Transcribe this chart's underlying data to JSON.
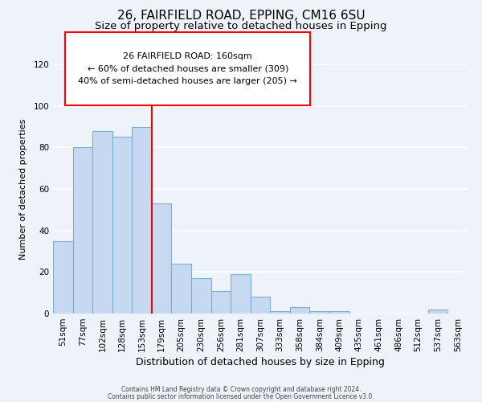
{
  "title1": "26, FAIRFIELD ROAD, EPPING, CM16 6SU",
  "title2": "Size of property relative to detached houses in Epping",
  "xlabel": "Distribution of detached houses by size in Epping",
  "ylabel": "Number of detached properties",
  "bar_labels": [
    "51sqm",
    "77sqm",
    "102sqm",
    "128sqm",
    "153sqm",
    "179sqm",
    "205sqm",
    "230sqm",
    "256sqm",
    "281sqm",
    "307sqm",
    "333sqm",
    "358sqm",
    "384sqm",
    "409sqm",
    "435sqm",
    "461sqm",
    "486sqm",
    "512sqm",
    "537sqm",
    "563sqm"
  ],
  "bar_values": [
    35,
    80,
    88,
    85,
    90,
    53,
    24,
    17,
    11,
    19,
    8,
    1,
    3,
    1,
    1,
    0,
    0,
    0,
    0,
    2,
    0
  ],
  "bar_color": "#c6d9f0",
  "bar_edgecolor": "#7bafd4",
  "red_line_x": 4.5,
  "annotation_title": "26 FAIRFIELD ROAD: 160sqm",
  "annotation_line1": "← 60% of detached houses are smaller (309)",
  "annotation_line2": "40% of semi-detached houses are larger (205) →",
  "ylim": [
    0,
    120
  ],
  "yticks": [
    0,
    20,
    40,
    60,
    80,
    100,
    120
  ],
  "footer1": "Contains HM Land Registry data © Crown copyright and database right 2024.",
  "footer2": "Contains public sector information licensed under the Open Government Licence v3.0.",
  "background_color": "#eef2f9",
  "grid_color": "#ffffff",
  "title1_fontsize": 11,
  "title2_fontsize": 9.5,
  "xlabel_fontsize": 9,
  "ylabel_fontsize": 8,
  "tick_fontsize": 7.5,
  "footer_fontsize": 5.5
}
